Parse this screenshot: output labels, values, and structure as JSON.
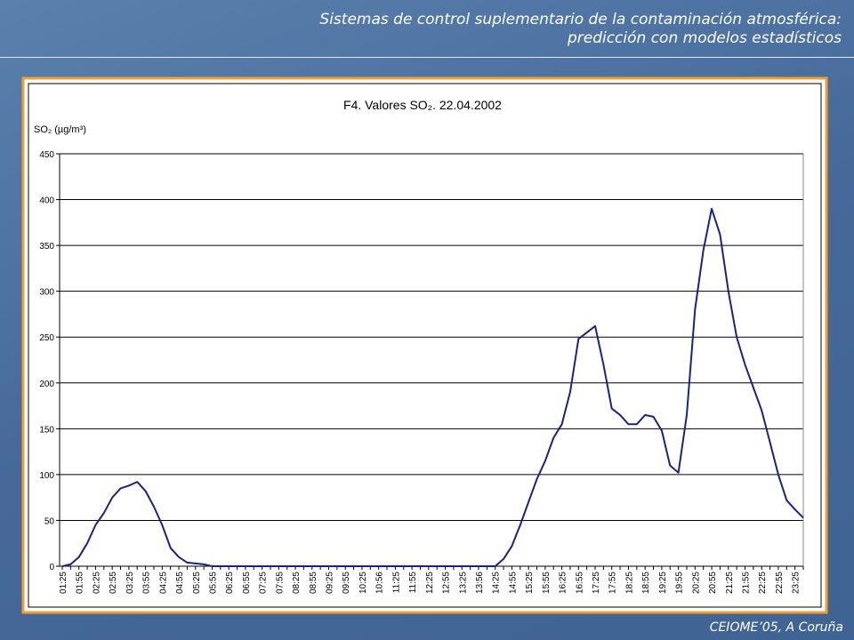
{
  "header": {
    "line1": "Sistemas de control suplementario de la contaminación atmosférica:",
    "line2": "predicción con modelos estadísticos"
  },
  "footer": "CEIOME’05, A Coruña",
  "chart_data": {
    "type": "line",
    "title": "F4. Valores SO₂. 22.04.2002",
    "y_label": "SO₂ (µg/m³)",
    "color": "#1a237e",
    "grid": true,
    "ylim": [
      0,
      450
    ],
    "yticks": [
      0,
      50,
      100,
      150,
      200,
      250,
      300,
      350,
      400,
      450
    ],
    "categories": [
      "01:25",
      null,
      "01:55",
      null,
      "02:25",
      null,
      "02:55",
      null,
      "03:25",
      null,
      "03:55",
      null,
      "04:25",
      null,
      "04:55",
      null,
      "05:25",
      null,
      "05:55",
      null,
      "06:25",
      null,
      "06:55",
      null,
      "07:25",
      null,
      "07:55",
      null,
      "08:25",
      null,
      "08:55",
      null,
      "09:25",
      null,
      "09:55",
      null,
      "10:25",
      null,
      "10:56",
      null,
      "11:25",
      null,
      "11:55",
      null,
      "12:25",
      null,
      "12:55",
      null,
      "13:25",
      null,
      "13:56",
      null,
      "14:25",
      null,
      "14:55",
      null,
      "15:25",
      null,
      "15:55",
      null,
      "16:25",
      null,
      "16:55",
      null,
      "17:25",
      null,
      "17:55",
      null,
      "18:25",
      null,
      "18:55",
      null,
      "19:25",
      null,
      "19:55",
      null,
      "20:25",
      null,
      "20:55",
      null,
      "21:25",
      null,
      "21:55",
      null,
      "22:25",
      null,
      "22:55",
      null,
      "23:25",
      null
    ],
    "values": [
      0,
      2,
      10,
      25,
      45,
      58,
      75,
      85,
      88,
      92,
      82,
      65,
      45,
      20,
      10,
      4,
      3,
      2,
      0,
      0,
      0,
      0,
      0,
      0,
      0,
      0,
      0,
      0,
      0,
      0,
      0,
      0,
      0,
      0,
      0,
      0,
      0,
      0,
      0,
      0,
      0,
      0,
      0,
      0,
      0,
      0,
      0,
      0,
      0,
      0,
      0,
      0,
      0,
      8,
      22,
      45,
      70,
      95,
      115,
      140,
      155,
      190,
      248,
      255,
      262,
      220,
      172,
      165,
      155,
      155,
      165,
      163,
      148,
      110,
      102,
      165,
      280,
      345,
      390,
      362,
      300,
      250,
      220,
      195,
      170,
      135,
      100,
      72,
      62,
      53
    ]
  }
}
